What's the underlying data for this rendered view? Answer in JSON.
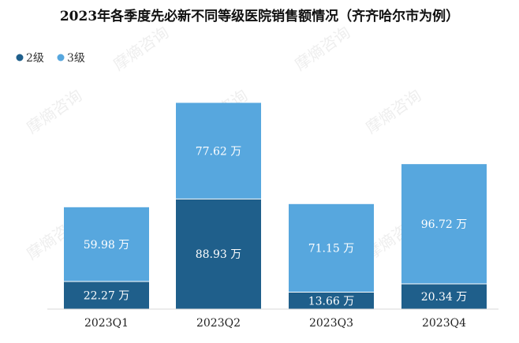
{
  "chart_data": {
    "type": "bar",
    "stacked": true,
    "title": "2023年各季度先必新不同等级医院销售额情况（齐齐哈尔市为例）",
    "categories": [
      "2023Q1",
      "2023Q2",
      "2023Q3",
      "2023Q4"
    ],
    "series": [
      {
        "name": "2级",
        "values": [
          22.27,
          88.93,
          13.66,
          20.34
        ],
        "color": "#1f5f8b"
      },
      {
        "name": "3级",
        "values": [
          59.98,
          77.62,
          71.15,
          96.72
        ],
        "color": "#57a7de"
      }
    ],
    "value_suffix": "万",
    "legend_position": "top-left",
    "ylim": [
      0,
      170
    ],
    "grid": false,
    "watermark": "摩熵咨询"
  }
}
